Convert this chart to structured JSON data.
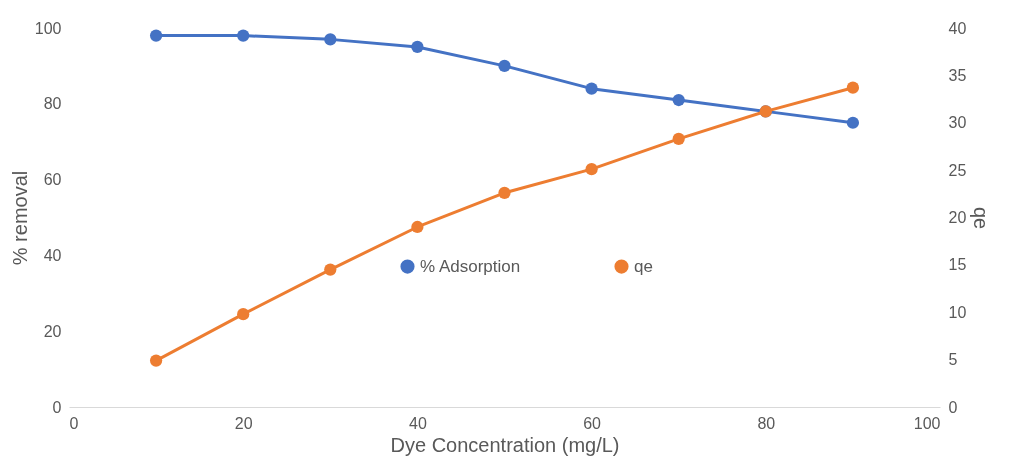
{
  "chart_data": {
    "type": "line",
    "xlabel": "Dye Concentration (mg/L)",
    "ylabel": "% removal",
    "y2label": "qe",
    "x": [
      10,
      20,
      30,
      40,
      50,
      60,
      70,
      80,
      90
    ],
    "series": [
      {
        "name": "% Adsorption",
        "color": "#4472c4",
        "values": [
          98,
          98,
          97,
          95,
          90,
          84,
          81,
          78,
          75
        ]
      },
      {
        "name": "qe",
        "color": "#ed7d31",
        "axis": "y2",
        "values": [
          4.9,
          9.8,
          14.5,
          19.0,
          22.6,
          25.1,
          28.3,
          31.2,
          33.7
        ]
      }
    ],
    "xlim": [
      0,
      100
    ],
    "xticks": [
      0,
      20,
      40,
      60,
      80,
      100
    ],
    "ylim": [
      0,
      100
    ],
    "yticks": [
      0,
      20,
      40,
      60,
      80,
      100
    ],
    "y2lim": [
      0,
      40
    ],
    "y2ticks": [
      0,
      5,
      10,
      15,
      20,
      25,
      30,
      35,
      40
    ],
    "grid": false,
    "legend": "center",
    "marker": "circle",
    "line_style": "solid"
  }
}
